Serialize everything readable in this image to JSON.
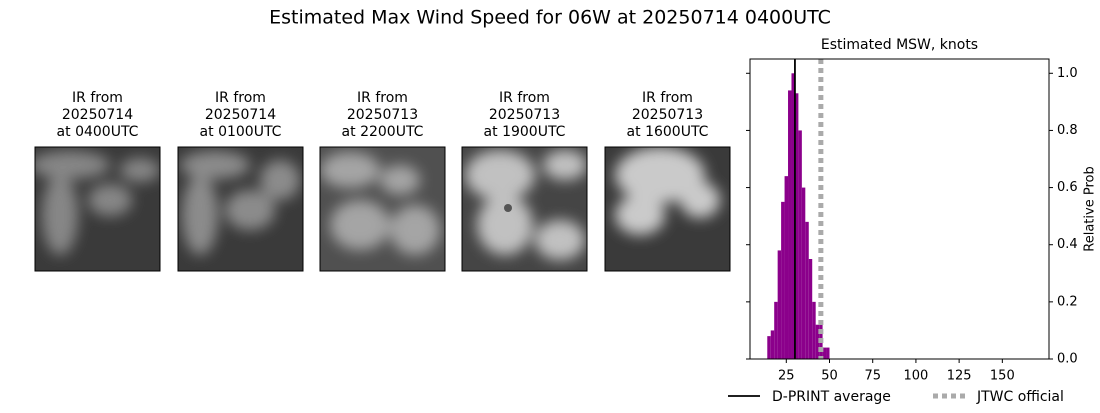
{
  "title": "Estimated Max Wind Speed for 06W at 20250714 0400UTC",
  "images": [
    {
      "caption": [
        "IR from",
        "20250714",
        "at 0400UTC"
      ]
    },
    {
      "caption": [
        "IR from",
        "20250714",
        "at 0100UTC"
      ]
    },
    {
      "caption": [
        "IR from",
        "20250713",
        "at 2200UTC"
      ]
    },
    {
      "caption": [
        "IR from",
        "20250713",
        "at 1900UTC"
      ]
    },
    {
      "caption": [
        "IR from",
        "20250713",
        "at 1600UTC"
      ]
    }
  ],
  "chart_data": {
    "type": "histogram",
    "title": "Estimated MSW, knots",
    "bins": [
      14,
      16,
      18,
      20,
      22,
      24,
      26,
      28,
      30,
      32,
      34,
      36,
      38,
      40,
      42,
      44,
      46,
      48,
      50
    ],
    "counts": [
      0.08,
      0.1,
      0.2,
      0.38,
      0.55,
      0.64,
      0.94,
      1.0,
      0.93,
      0.8,
      0.6,
      0.48,
      0.35,
      0.2,
      0.12,
      0.12,
      0.04,
      0.04
    ],
    "color": "#8b008b",
    "xlim": [
      4,
      177
    ],
    "xticks": [
      25,
      50,
      75,
      100,
      125,
      150
    ],
    "ylim": [
      0,
      1.05
    ],
    "yticks": [
      {
        "value": 0,
        "label": "0.0"
      },
      {
        "value": 0.2,
        "label": "0.2"
      },
      {
        "value": 0.4,
        "label": "0.4"
      },
      {
        "value": 0.6,
        "label": "0.6"
      },
      {
        "value": 0.8,
        "label": "0.8"
      },
      {
        "value": 1.0,
        "label": "1.0"
      }
    ],
    "ylabel": "Relative Prob",
    "y_axis_side": "right",
    "vlines": [
      {
        "name": "D-PRINT average",
        "value": 30,
        "color": "#000000",
        "style": "solid"
      },
      {
        "name": "JTWC official",
        "value": 45,
        "color": "#aaaaaa",
        "style": "dotted"
      }
    ]
  }
}
